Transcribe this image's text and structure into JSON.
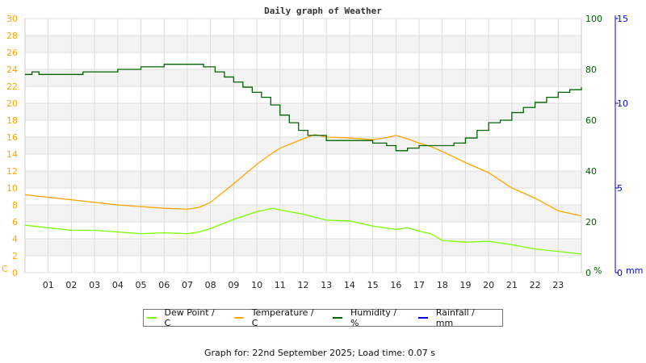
{
  "chart_data": {
    "type": "line",
    "title": "Daily graph of Weather",
    "x_ticks": [
      "01",
      "02",
      "03",
      "04",
      "05",
      "06",
      "07",
      "08",
      "09",
      "10",
      "11",
      "12",
      "13",
      "14",
      "15",
      "16",
      "17",
      "18",
      "19",
      "20",
      "21",
      "22",
      "23"
    ],
    "xlim": [
      0,
      24
    ],
    "left_axis": {
      "unit_label": "C",
      "ylim": [
        0,
        30
      ],
      "ticks": [
        "0",
        "2",
        "4",
        "6",
        "8",
        "10",
        "12",
        "14",
        "16",
        "18",
        "20",
        "22",
        "24",
        "26",
        "28",
        "30"
      ],
      "color": "#FFA500"
    },
    "humidity_axis": {
      "unit_label": "%",
      "ylim": [
        0,
        100
      ],
      "ticks": [
        "0",
        "20",
        "40",
        "60",
        "80",
        "100"
      ],
      "color": "#006400"
    },
    "rain_axis": {
      "unit_label": "mm",
      "ylim": [
        0,
        15
      ],
      "ticks": [
        "0",
        "5",
        "10",
        "15"
      ],
      "color": "#0000FF"
    },
    "grid": true,
    "legend_position": "bottom",
    "series": [
      {
        "name": "Dew Point / C",
        "color": "#7CFC00",
        "axis": "left",
        "x": [
          0,
          1,
          2,
          3,
          4,
          5,
          6,
          7,
          7.5,
          8,
          9,
          10,
          10.7,
          11,
          12,
          13,
          14,
          15,
          16,
          16.5,
          17,
          17.5,
          18,
          19,
          20,
          21,
          22,
          23,
          24
        ],
        "y": [
          5.6,
          5.3,
          5.0,
          5.0,
          4.8,
          4.6,
          4.7,
          4.6,
          4.8,
          5.2,
          6.3,
          7.2,
          7.6,
          7.4,
          6.9,
          6.2,
          6.1,
          5.5,
          5.1,
          5.3,
          4.9,
          4.6,
          3.8,
          3.6,
          3.7,
          3.3,
          2.8,
          2.5,
          2.2
        ]
      },
      {
        "name": "Temperature / C",
        "color": "#FFA500",
        "axis": "left",
        "x": [
          0,
          1,
          2,
          3,
          4,
          5,
          6,
          7,
          7.5,
          8,
          9,
          10,
          10.5,
          11,
          12,
          12.5,
          13,
          14,
          15,
          15.5,
          16,
          16.5,
          17,
          17.5,
          18,
          19,
          20,
          21,
          22,
          23,
          24
        ],
        "y": [
          9.2,
          8.9,
          8.6,
          8.3,
          8.0,
          7.8,
          7.6,
          7.5,
          7.7,
          8.3,
          10.5,
          12.8,
          13.8,
          14.7,
          15.8,
          16.3,
          16.0,
          15.9,
          15.7,
          15.9,
          16.2,
          15.8,
          15.3,
          14.9,
          14.3,
          13.0,
          11.8,
          10.0,
          8.8,
          7.3,
          6.7
        ]
      },
      {
        "name": "Humidity / %",
        "color": "#006400",
        "axis": "humidity",
        "x": [
          0,
          0.3,
          0.6,
          2.5,
          4,
          5,
          6,
          7,
          7.7,
          8.2,
          8.6,
          9,
          9.4,
          9.8,
          10.2,
          10.6,
          11,
          11.4,
          11.8,
          12.2,
          13,
          14,
          15,
          15.6,
          16,
          16.5,
          17,
          17.5,
          18,
          18.5,
          19,
          19.5,
          20,
          20.5,
          21,
          21.5,
          22,
          22.5,
          23,
          23.5,
          24
        ],
        "y": [
          78,
          79,
          78,
          79,
          80,
          81,
          82,
          82,
          81,
          79,
          77,
          75,
          73,
          71,
          69,
          66,
          62,
          59,
          56,
          54,
          52,
          52,
          51,
          50,
          48,
          49,
          50,
          50,
          50,
          51,
          53,
          56,
          59,
          60,
          63,
          65,
          67,
          69,
          71,
          72,
          73
        ]
      },
      {
        "name": "Rainfall / mm",
        "color": "#0000FF",
        "axis": "rain",
        "x": [
          0,
          24
        ],
        "y": [
          0,
          0
        ]
      }
    ]
  },
  "footer": "Graph for: 22nd September 2025; Load time: 0.07 s"
}
